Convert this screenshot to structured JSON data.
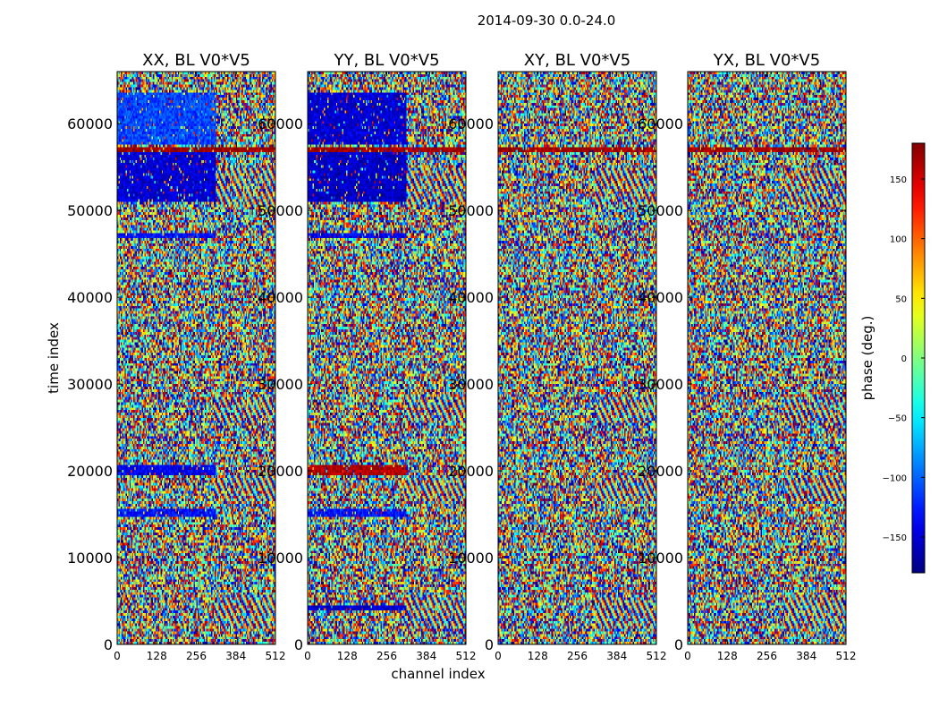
{
  "figure": {
    "title": "2014-09-30 0.0-24.0",
    "xlabel": "channel index",
    "ylabel": "time index"
  },
  "colorbar": {
    "label": "phase (deg.)",
    "colormap": "jet",
    "range": [
      -180,
      180
    ],
    "ticks": [
      -150,
      -100,
      -50,
      0,
      50,
      100,
      150
    ],
    "tick_labels": [
      "−150",
      "−100",
      "−50",
      "0",
      "50",
      "100",
      "150"
    ],
    "colors": [
      "#00007f",
      "#0000ff",
      "#007fff",
      "#00ffff",
      "#7fff7f",
      "#ffff00",
      "#ff7f00",
      "#ff0000",
      "#7f0000"
    ]
  },
  "chart_data": [
    {
      "type": "heatmap",
      "title": "XX, BL V0*V5",
      "x_range": [
        0,
        512
      ],
      "x_ticks": [
        0,
        128,
        256,
        384,
        512
      ],
      "y_range": [
        0,
        66000
      ],
      "y_ticks": [
        0,
        10000,
        20000,
        30000,
        40000,
        50000,
        60000
      ],
      "value_quantity": "phase (deg.)",
      "coherent_bands": [
        {
          "y": [
            57500,
            63500
          ],
          "x": [
            0,
            320
          ],
          "phase_deg": -110
        },
        {
          "y": [
            51000,
            56800
          ],
          "x": [
            0,
            320
          ],
          "phase_deg": -150
        },
        {
          "y": [
            46700,
            47400
          ],
          "x": [
            0,
            320
          ],
          "phase_deg": -130
        },
        {
          "y": [
            19500,
            20800
          ],
          "x": [
            0,
            320
          ],
          "phase_deg": -140
        },
        {
          "y": [
            14800,
            15500
          ],
          "x": [
            0,
            320
          ],
          "phase_deg": -130
        },
        {
          "y": [
            56700,
            57300
          ],
          "x": [
            0,
            512
          ],
          "phase_deg": 170
        }
      ]
    },
    {
      "type": "heatmap",
      "title": "YY, BL V0*V5",
      "x_range": [
        0,
        512
      ],
      "x_ticks": [
        0,
        128,
        256,
        384,
        512
      ],
      "y_range": [
        0,
        66000
      ],
      "y_ticks": [
        0,
        10000,
        20000,
        30000,
        40000,
        50000,
        60000
      ],
      "value_quantity": "phase (deg.)",
      "coherent_bands": [
        {
          "y": [
            57500,
            63500
          ],
          "x": [
            0,
            320
          ],
          "phase_deg": -150
        },
        {
          "y": [
            51000,
            56800
          ],
          "x": [
            0,
            320
          ],
          "phase_deg": -155
        },
        {
          "y": [
            46700,
            47400
          ],
          "x": [
            0,
            320
          ],
          "phase_deg": -140
        },
        {
          "y": [
            19500,
            20800
          ],
          "x": [
            0,
            320
          ],
          "phase_deg": 165
        },
        {
          "y": [
            14800,
            15500
          ],
          "x": [
            0,
            320
          ],
          "phase_deg": -130
        },
        {
          "y": [
            3900,
            4400
          ],
          "x": [
            0,
            320
          ],
          "phase_deg": -150
        },
        {
          "y": [
            56700,
            57300
          ],
          "x": [
            0,
            512
          ],
          "phase_deg": 170
        }
      ]
    },
    {
      "type": "heatmap",
      "title": "XY, BL V0*V5",
      "x_range": [
        0,
        512
      ],
      "x_ticks": [
        0,
        128,
        256,
        384,
        512
      ],
      "y_range": [
        0,
        66000
      ],
      "y_ticks": [
        0,
        10000,
        20000,
        30000,
        40000,
        50000,
        60000
      ],
      "value_quantity": "phase (deg.)",
      "coherent_bands": [
        {
          "y": [
            56700,
            57300
          ],
          "x": [
            0,
            512
          ],
          "phase_deg": 170
        }
      ]
    },
    {
      "type": "heatmap",
      "title": "YX, BL V0*V5",
      "x_range": [
        0,
        512
      ],
      "x_ticks": [
        0,
        128,
        256,
        384,
        512
      ],
      "y_range": [
        0,
        66000
      ],
      "y_ticks": [
        0,
        10000,
        20000,
        30000,
        40000,
        50000,
        60000
      ],
      "value_quantity": "phase (deg.)",
      "coherent_bands": [
        {
          "y": [
            56700,
            57300
          ],
          "x": [
            0,
            512
          ],
          "phase_deg": 170
        }
      ]
    }
  ]
}
